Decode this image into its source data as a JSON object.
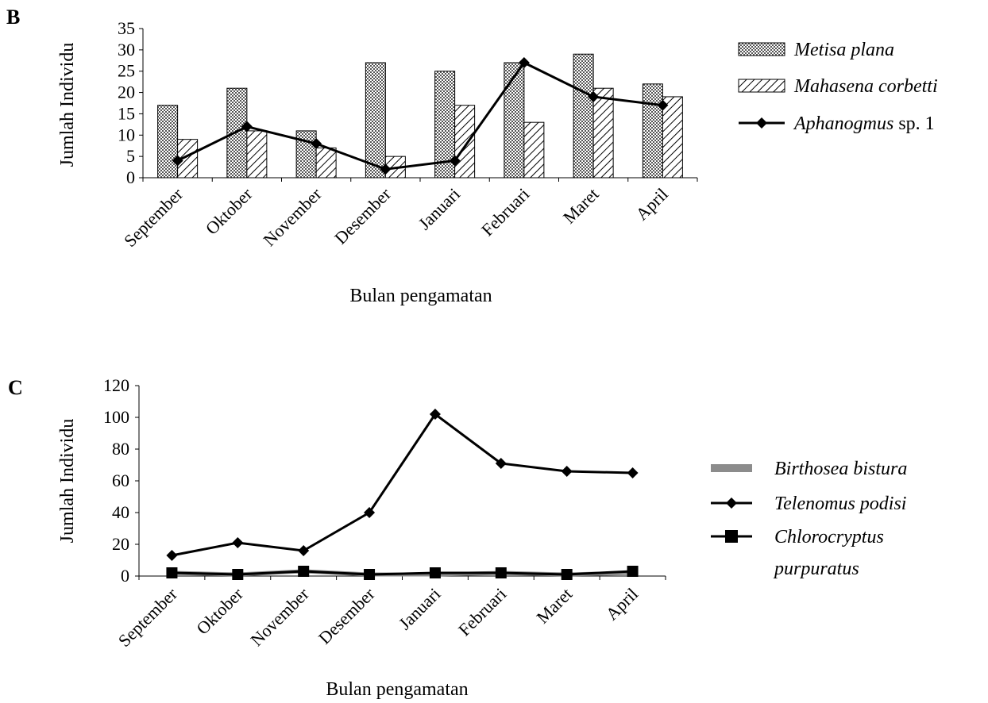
{
  "chart_data": [
    {
      "panel": "B",
      "type": "bar",
      "xlabel": "Bulan pengamatan",
      "ylabel": "Jumlah Individu",
      "ylim": [
        0,
        35
      ],
      "yticks": [
        "0",
        "5",
        "10",
        "15",
        "20",
        "25",
        "30",
        "35"
      ],
      "categories": [
        "September",
        "Oktober",
        "November",
        "Desember",
        "Januari",
        "Februari",
        "Maret",
        "April"
      ],
      "series": [
        {
          "name_italic": "Metisa plana",
          "name_rest": "",
          "kind": "bar",
          "pattern": "crosshatch",
          "values": [
            17,
            21,
            11,
            27,
            25,
            27,
            29,
            22
          ]
        },
        {
          "name_italic": "Mahasena corbetti",
          "name_rest": "",
          "kind": "bar",
          "pattern": "diagonal",
          "values": [
            9,
            11,
            7,
            5,
            17,
            13,
            21,
            19
          ]
        },
        {
          "name_italic": "Aphanogmus",
          "name_rest": " sp. 1",
          "kind": "line",
          "marker": "diamond",
          "values": [
            4,
            12,
            8,
            2,
            4,
            27,
            19,
            17
          ]
        }
      ],
      "legend_position": "right",
      "grid": false
    },
    {
      "panel": "C",
      "type": "line",
      "xlabel": "Bulan pengamatan",
      "ylabel": "Jumlah Individu",
      "ylim": [
        0,
        120
      ],
      "yticks": [
        "0",
        "20",
        "40",
        "60",
        "80",
        "100",
        "120"
      ],
      "categories": [
        "September",
        "Oktober",
        "November",
        "Desember",
        "Januari",
        "Februari",
        "Maret",
        "April"
      ],
      "series": [
        {
          "name_lines": [
            "Birthosea bistura"
          ],
          "marker": "none",
          "color": "#8c8c8c",
          "values": [
            2,
            1,
            3,
            1,
            1,
            2,
            1,
            2
          ]
        },
        {
          "name_lines": [
            "Telenomus podisi"
          ],
          "marker": "diamond",
          "color": "#000000",
          "values": [
            13,
            21,
            16,
            40,
            102,
            71,
            66,
            65
          ]
        },
        {
          "name_lines": [
            "Chlorocryptus",
            "purpuratus"
          ],
          "marker": "square",
          "color": "#000000",
          "values": [
            2,
            1,
            3,
            1,
            2,
            2,
            1,
            3
          ]
        }
      ],
      "legend_position": "right",
      "grid": false
    }
  ]
}
